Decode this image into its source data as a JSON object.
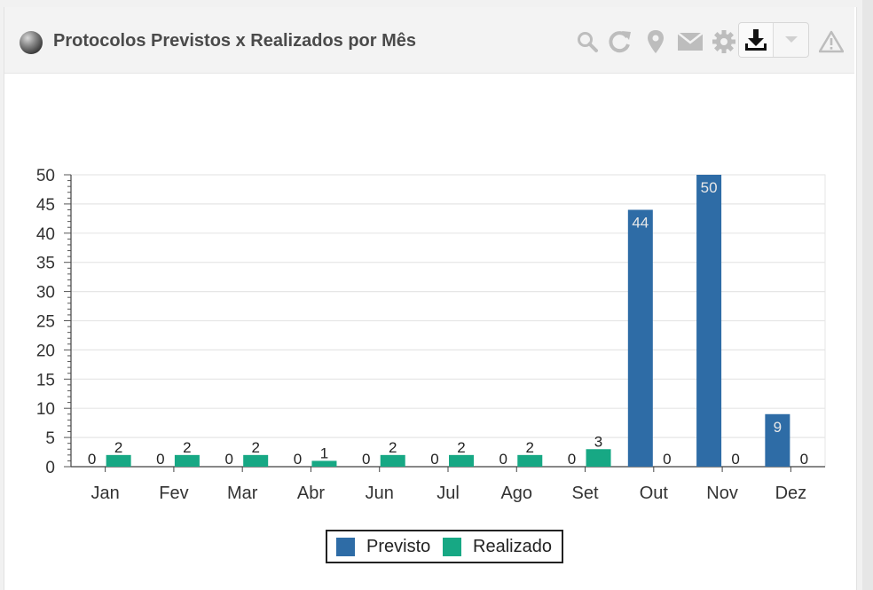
{
  "panel": {
    "title": "Protocolos Previstos x Realizados por Mês"
  },
  "toolbar": {
    "icons": [
      "search-icon",
      "refresh-icon",
      "map-pin-icon",
      "mail-icon",
      "gear-icon",
      "download-icon",
      "chevron-down-icon",
      "warning-icon"
    ]
  },
  "colors": {
    "previsto": "#2e6ca6",
    "realizado": "#17a884",
    "icon": "#bdbdbd",
    "grid": "#e6e6e6"
  },
  "chart_data": {
    "type": "bar",
    "categories": [
      "Jan",
      "Fev",
      "Mar",
      "Abr",
      "Jun",
      "Jul",
      "Ago",
      "Set",
      "Out",
      "Nov",
      "Dez"
    ],
    "series": [
      {
        "name": "Previsto",
        "values": [
          0,
          0,
          0,
          0,
          0,
          0,
          0,
          0,
          44,
          50,
          9
        ]
      },
      {
        "name": "Realizado",
        "values": [
          2,
          2,
          2,
          1,
          2,
          2,
          2,
          3,
          0,
          0,
          0
        ]
      }
    ],
    "ylim": [
      0,
      50
    ],
    "yticks": [
      0,
      5,
      10,
      15,
      20,
      25,
      30,
      35,
      40,
      45,
      50
    ],
    "grid": true,
    "legend": "bottom-center",
    "data_labels": true
  }
}
